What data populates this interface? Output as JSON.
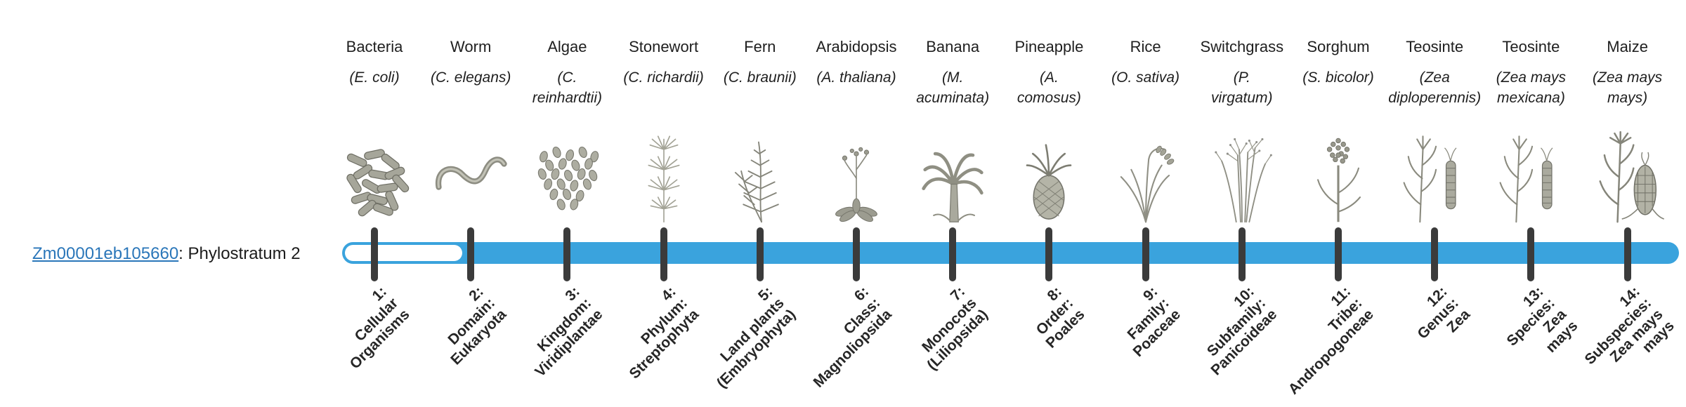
{
  "gene": {
    "id": "Zm00001eb105660",
    "stratum_text": ": Phylostratum 2"
  },
  "track": {
    "bar_color": "#3aa3dd",
    "unfilled_color": "#ffffff",
    "tick_color": "#3b3b3b",
    "filled_from_stage": 2,
    "total_stages": 14
  },
  "organisms": [
    {
      "name": "Bacteria",
      "sci_lines": [
        "(E. coli)"
      ],
      "icon": "bacteria-illustration",
      "stage_lines": [
        "1:",
        "Cellular",
        "Organisms"
      ]
    },
    {
      "name": "Worm",
      "sci_lines": [
        "(C. elegans)"
      ],
      "icon": "worm-illustration",
      "stage_lines": [
        "2:",
        "Domain:",
        "Eukaryota"
      ]
    },
    {
      "name": "Algae",
      "sci_lines": [
        "(C.",
        "reinhardtii)"
      ],
      "icon": "algae-illustration",
      "stage_lines": [
        "3:",
        "Kingdom:",
        "Viridiplantae"
      ]
    },
    {
      "name": "Stonewort",
      "sci_lines": [
        "(C. richardii)"
      ],
      "icon": "stonewort-illustration",
      "stage_lines": [
        "4:",
        "Phylum:",
        "Streptophyta"
      ]
    },
    {
      "name": "Fern",
      "sci_lines": [
        "(C. braunii)"
      ],
      "icon": "fern-illustration",
      "stage_lines": [
        "5:",
        "Land plants",
        "(Embryophyta)"
      ]
    },
    {
      "name": "Arabidopsis",
      "sci_lines": [
        "(A. thaliana)"
      ],
      "icon": "arabidopsis-illustration",
      "stage_lines": [
        "6:",
        "Class:",
        "Magnoliopsida"
      ]
    },
    {
      "name": "Banana",
      "sci_lines": [
        "(M.",
        "acuminata)"
      ],
      "icon": "banana-illustration",
      "stage_lines": [
        "7:",
        "Monocots",
        "(Liliopsida)"
      ]
    },
    {
      "name": "Pineapple",
      "sci_lines": [
        "(A.",
        "comosus)"
      ],
      "icon": "pineapple-illustration",
      "stage_lines": [
        "8:",
        "Order:",
        "Poales"
      ]
    },
    {
      "name": "Rice",
      "sci_lines": [
        "(O. sativa)"
      ],
      "icon": "rice-illustration",
      "stage_lines": [
        "9:",
        "Family:",
        "Poaceae"
      ]
    },
    {
      "name": "Switchgrass",
      "sci_lines": [
        "(P.",
        "virgatum)"
      ],
      "icon": "switchgrass-illustration",
      "stage_lines": [
        "10:",
        "Subfamily:",
        "Panicoideae"
      ]
    },
    {
      "name": "Sorghum",
      "sci_lines": [
        "(S. bicolor)"
      ],
      "icon": "sorghum-illustration",
      "stage_lines": [
        "11:",
        "Tribe:",
        "Andropogoneae"
      ]
    },
    {
      "name": "Teosinte",
      "sci_lines": [
        "(Zea",
        "diploperennis)"
      ],
      "icon": "teosinte-illustration",
      "stage_lines": [
        "12:",
        "Genus:",
        "Zea"
      ]
    },
    {
      "name": "Teosinte",
      "sci_lines": [
        "(Zea mays",
        "mexicana)"
      ],
      "icon": "teosinte-illustration",
      "stage_lines": [
        "13:",
        "Species:",
        "Zea",
        "mays"
      ]
    },
    {
      "name": "Maize",
      "sci_lines": [
        "(Zea mays",
        "mays)"
      ],
      "icon": "maize-illustration",
      "stage_lines": [
        "14:",
        "Subspecies:",
        "Zea mays",
        "mays"
      ]
    }
  ]
}
